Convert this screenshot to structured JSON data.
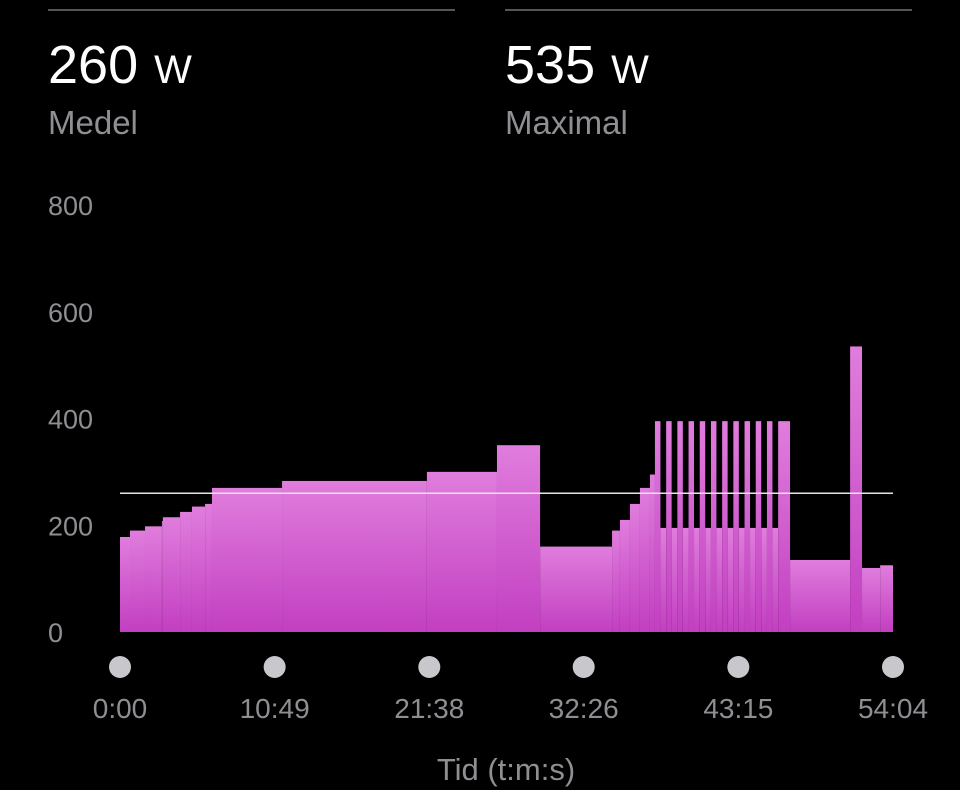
{
  "stats": [
    {
      "value": 260,
      "unit": "W",
      "label": "Medel"
    },
    {
      "value": 535,
      "unit": "W",
      "label": "Maximal"
    }
  ],
  "chart_data": {
    "type": "area",
    "x_label": "Tid (t:m:s)",
    "color": "#d15ed0",
    "x": [
      0,
      42,
      105,
      176,
      180,
      252,
      302,
      357,
      386,
      680,
      1288,
      1582,
      1763,
      2065,
      2098,
      2140,
      2182,
      2224,
      2245,
      2268,
      2292,
      2315,
      2339,
      2362,
      2386,
      2409,
      2433,
      2456,
      2480,
      2503,
      2527,
      2550,
      2574,
      2597,
      2621,
      2644,
      2668,
      2691,
      2715,
      2738,
      2762,
      2812,
      3064,
      3114,
      3190
    ],
    "values": [
      178,
      190,
      198,
      208,
      215,
      225,
      235,
      240,
      270,
      283,
      300,
      350,
      160,
      190,
      210,
      240,
      270,
      295,
      395,
      195,
      395,
      195,
      395,
      195,
      395,
      195,
      395,
      195,
      395,
      195,
      395,
      195,
      395,
      195,
      395,
      195,
      395,
      195,
      395,
      195,
      395,
      135,
      535,
      120,
      125
    ],
    "xlim": [
      0,
      3244
    ],
    "xticks": [
      {
        "value": 0,
        "label": "0:00"
      },
      {
        "value": 649,
        "label": "10:49"
      },
      {
        "value": 1298,
        "label": "21:38"
      },
      {
        "value": 1946,
        "label": "32:26"
      },
      {
        "value": 2595,
        "label": "43:15"
      },
      {
        "value": 3244,
        "label": "54:04"
      }
    ],
    "ylim": [
      0,
      800
    ],
    "yticks": [
      0,
      200,
      400,
      600,
      800
    ]
  }
}
